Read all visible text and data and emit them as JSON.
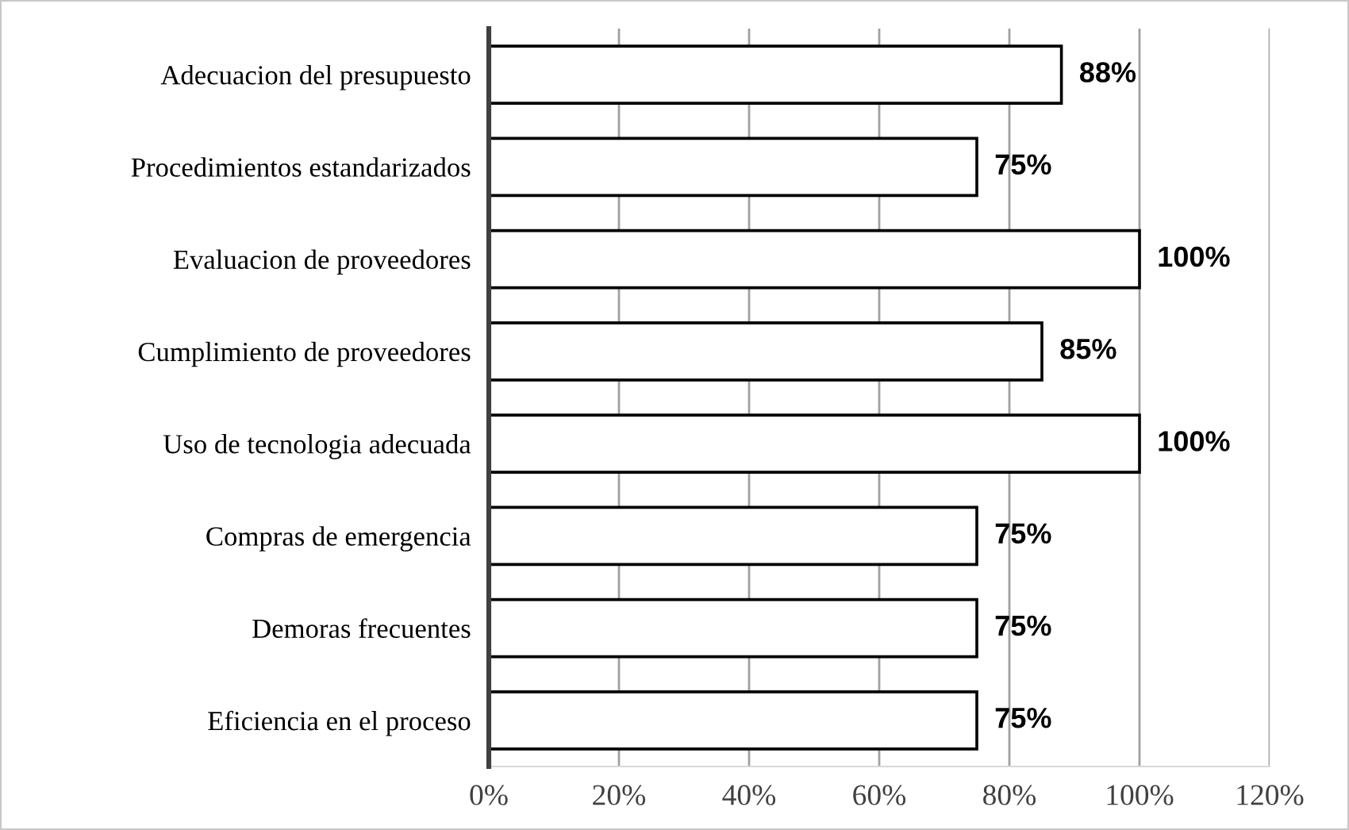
{
  "chart_data": {
    "type": "bar",
    "orientation": "horizontal",
    "categories": [
      "Adecuacion del presupuesto",
      "Procedimientos estandarizados",
      "Evaluacion de proveedores",
      "Cumplimiento de proveedores",
      "Uso de tecnologia adecuada",
      "Compras de emergencia",
      "Demoras frecuentes",
      "Eficiencia en el proceso"
    ],
    "values": [
      88,
      75,
      100,
      85,
      100,
      75,
      75,
      75
    ],
    "value_labels": [
      "88%",
      "75%",
      "100%",
      "85%",
      "100%",
      "75%",
      "75%",
      "75%"
    ],
    "color": "#ffffff",
    "xlim": [
      0,
      120
    ],
    "xticks": [
      {
        "value": 0,
        "label": "0%"
      },
      {
        "value": 20,
        "label": "20%"
      },
      {
        "value": 40,
        "label": "40%"
      },
      {
        "value": 60,
        "label": "60%"
      },
      {
        "value": 80,
        "label": "80%"
      },
      {
        "value": 100,
        "label": "100%"
      },
      {
        "value": 120,
        "label": "120%"
      }
    ],
    "grid": "x",
    "legend": false
  }
}
